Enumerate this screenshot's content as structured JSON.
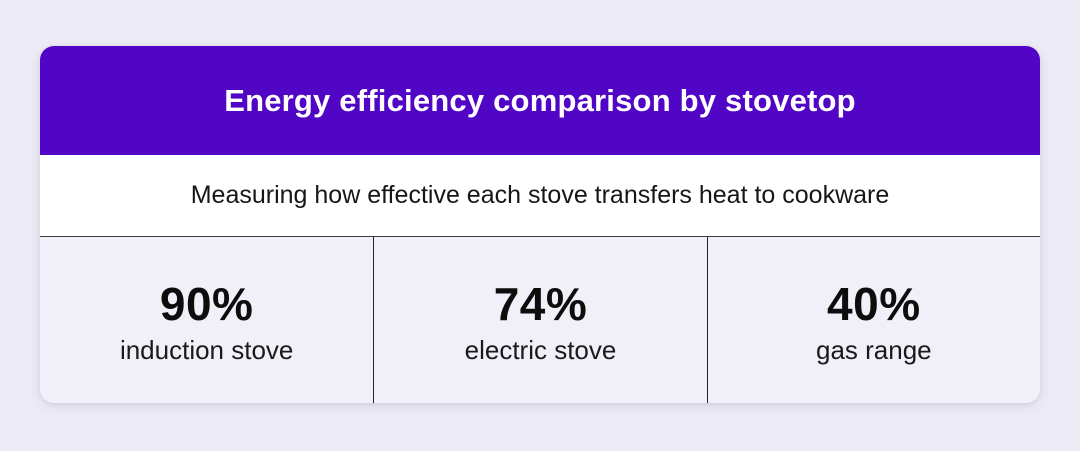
{
  "page": {
    "background_color": "#ECEAF4"
  },
  "card": {
    "header": {
      "title": "Energy efficiency comparison by stovetop",
      "background_color": "#5106C6",
      "text_color": "#FFFFFF"
    },
    "subtitle": {
      "text": "Measuring how effective each stove transfers heat to cookware"
    },
    "stats": {
      "background_color": "#F1EFF8",
      "divider_color": "#23232B",
      "items": [
        {
          "value": "90%",
          "label": "induction stove"
        },
        {
          "value": "74%",
          "label": "electric stove"
        },
        {
          "value": "40%",
          "label": "gas range"
        }
      ]
    }
  },
  "chart_data": {
    "type": "table",
    "title": "Energy efficiency comparison by stovetop",
    "subtitle": "Measuring how effective each stove transfers heat to cookware",
    "categories": [
      "induction stove",
      "electric stove",
      "gas range"
    ],
    "values": [
      90,
      74,
      40
    ],
    "unit": "%"
  }
}
